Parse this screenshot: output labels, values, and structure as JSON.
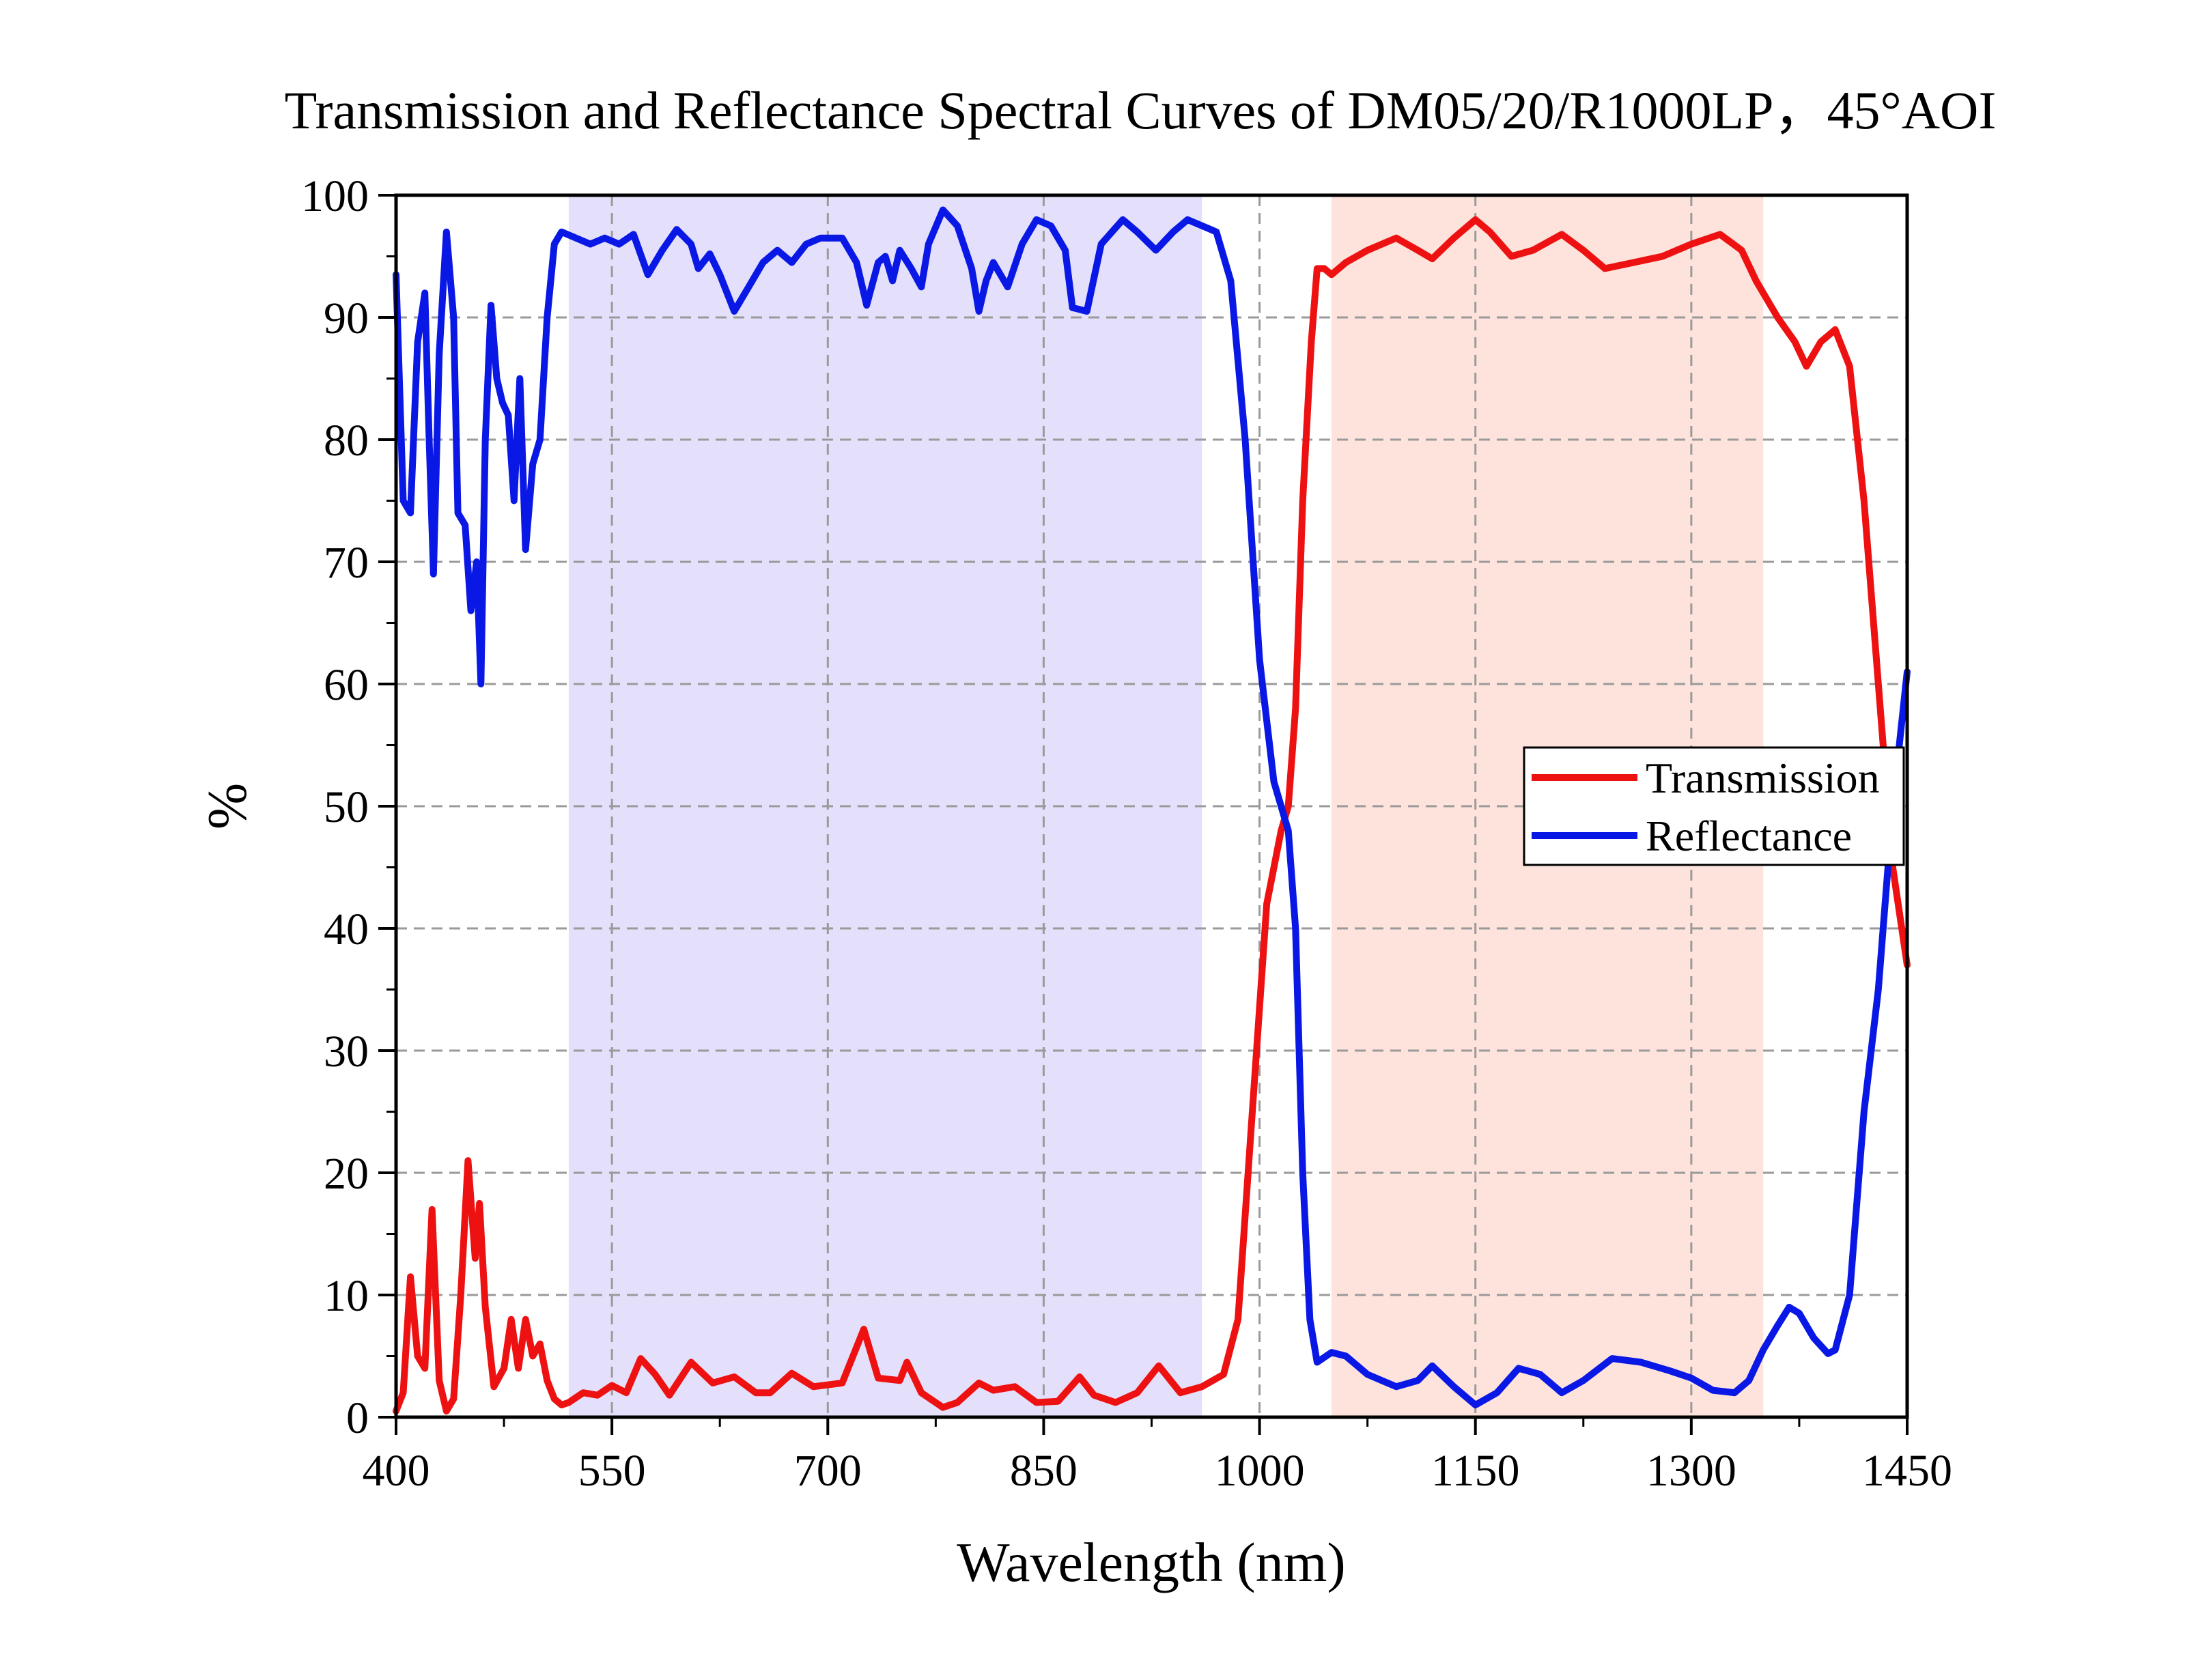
{
  "chart_data": {
    "type": "line",
    "title": "Transmission and Reflectance Spectral Curves of DM05/20/R1000LP，45°AOI",
    "xlabel": "Wavelength (nm)",
    "ylabel": "%",
    "xlim": [
      400,
      1450
    ],
    "ylim": [
      0,
      100
    ],
    "xticks": [
      "400",
      "550",
      "700",
      "850",
      "1000",
      "1150",
      "1300",
      "1450"
    ],
    "yticks": [
      "0",
      "10",
      "20",
      "30",
      "40",
      "50",
      "60",
      "70",
      "80",
      "90",
      "100"
    ],
    "grid": true,
    "legend_position": "right",
    "shaded_regions": [
      {
        "x_range": [
          520,
          960
        ],
        "color": "#e4e0fb"
      },
      {
        "x_range": [
          1050,
          1350
        ],
        "color": "#fde3dc"
      }
    ],
    "series": [
      {
        "name": "Transmission",
        "color": "#ee1111",
        "points": [
          [
            400,
            0.5
          ],
          [
            405,
            2
          ],
          [
            410,
            11.5
          ],
          [
            415,
            5
          ],
          [
            420,
            4
          ],
          [
            425,
            17
          ],
          [
            430,
            3
          ],
          [
            435,
            0.5
          ],
          [
            440,
            1.5
          ],
          [
            445,
            10
          ],
          [
            450,
            21
          ],
          [
            455,
            13
          ],
          [
            458,
            17.5
          ],
          [
            462,
            9
          ],
          [
            468,
            2.5
          ],
          [
            475,
            4
          ],
          [
            480,
            8
          ],
          [
            485,
            4
          ],
          [
            490,
            8
          ],
          [
            495,
            5
          ],
          [
            500,
            6
          ],
          [
            505,
            3
          ],
          [
            510,
            1.5
          ],
          [
            515,
            1
          ],
          [
            520,
            1.2
          ],
          [
            530,
            2
          ],
          [
            540,
            1.8
          ],
          [
            550,
            2.6
          ],
          [
            560,
            2
          ],
          [
            570,
            4.8
          ],
          [
            580,
            3.5
          ],
          [
            590,
            1.8
          ],
          [
            605,
            4.5
          ],
          [
            620,
            2.8
          ],
          [
            635,
            3.3
          ],
          [
            650,
            2
          ],
          [
            660,
            2
          ],
          [
            675,
            3.6
          ],
          [
            690,
            2.5
          ],
          [
            710,
            2.8
          ],
          [
            725,
            7.2
          ],
          [
            735,
            3.2
          ],
          [
            750,
            3
          ],
          [
            755,
            4.5
          ],
          [
            765,
            2
          ],
          [
            780,
            0.8
          ],
          [
            790,
            1.2
          ],
          [
            805,
            2.8
          ],
          [
            815,
            2.2
          ],
          [
            830,
            2.5
          ],
          [
            845,
            1.2
          ],
          [
            860,
            1.3
          ],
          [
            875,
            3.3
          ],
          [
            885,
            1.8
          ],
          [
            900,
            1.2
          ],
          [
            915,
            2
          ],
          [
            930,
            4.2
          ],
          [
            945,
            2
          ],
          [
            960,
            2.5
          ],
          [
            975,
            3.5
          ],
          [
            985,
            8
          ],
          [
            995,
            25
          ],
          [
            1005,
            42
          ],
          [
            1015,
            48
          ],
          [
            1020,
            50
          ],
          [
            1025,
            58
          ],
          [
            1030,
            75
          ],
          [
            1036,
            88
          ],
          [
            1040,
            94
          ],
          [
            1045,
            94
          ],
          [
            1050,
            93.5
          ],
          [
            1060,
            94.5
          ],
          [
            1075,
            95.5
          ],
          [
            1095,
            96.5
          ],
          [
            1110,
            95.5
          ],
          [
            1120,
            94.8
          ],
          [
            1135,
            96.5
          ],
          [
            1150,
            98
          ],
          [
            1160,
            97
          ],
          [
            1175,
            95
          ],
          [
            1190,
            95.5
          ],
          [
            1210,
            96.8
          ],
          [
            1225,
            95.5
          ],
          [
            1240,
            94
          ],
          [
            1260,
            94.5
          ],
          [
            1280,
            95
          ],
          [
            1300,
            96
          ],
          [
            1320,
            96.8
          ],
          [
            1335,
            95.5
          ],
          [
            1345,
            93
          ],
          [
            1360,
            90
          ],
          [
            1372,
            88
          ],
          [
            1380,
            86
          ],
          [
            1390,
            88
          ],
          [
            1400,
            89
          ],
          [
            1410,
            86
          ],
          [
            1420,
            75
          ],
          [
            1430,
            60
          ],
          [
            1440,
            45
          ],
          [
            1450,
            37
          ]
        ]
      },
      {
        "name": "Reflectance",
        "color": "#0a18e6",
        "points": [
          [
            400,
            93.5
          ],
          [
            405,
            75
          ],
          [
            410,
            74
          ],
          [
            415,
            88
          ],
          [
            420,
            92
          ],
          [
            423,
            80
          ],
          [
            426,
            69
          ],
          [
            430,
            87
          ],
          [
            435,
            97
          ],
          [
            440,
            90
          ],
          [
            443,
            74
          ],
          [
            448,
            73
          ],
          [
            452,
            66
          ],
          [
            456,
            70
          ],
          [
            459,
            60
          ],
          [
            462,
            80
          ],
          [
            466,
            91
          ],
          [
            470,
            85
          ],
          [
            474,
            83
          ],
          [
            478,
            82
          ],
          [
            482,
            75
          ],
          [
            486,
            85
          ],
          [
            490,
            71
          ],
          [
            495,
            78
          ],
          [
            500,
            80
          ],
          [
            505,
            90
          ],
          [
            510,
            96
          ],
          [
            515,
            97
          ],
          [
            525,
            96.5
          ],
          [
            535,
            96
          ],
          [
            545,
            96.5
          ],
          [
            555,
            96
          ],
          [
            565,
            96.8
          ],
          [
            575,
            93.5
          ],
          [
            585,
            95.5
          ],
          [
            595,
            97.2
          ],
          [
            605,
            96
          ],
          [
            610,
            94
          ],
          [
            618,
            95.2
          ],
          [
            625,
            93.5
          ],
          [
            635,
            90.5
          ],
          [
            645,
            92.5
          ],
          [
            655,
            94.5
          ],
          [
            665,
            95.5
          ],
          [
            675,
            94.5
          ],
          [
            685,
            96
          ],
          [
            695,
            96.5
          ],
          [
            710,
            96.5
          ],
          [
            720,
            94.5
          ],
          [
            727,
            91
          ],
          [
            735,
            94.5
          ],
          [
            740,
            95
          ],
          [
            745,
            93
          ],
          [
            750,
            95.5
          ],
          [
            758,
            94
          ],
          [
            765,
            92.5
          ],
          [
            770,
            96
          ],
          [
            780,
            98.8
          ],
          [
            790,
            97.5
          ],
          [
            800,
            94
          ],
          [
            805,
            90.5
          ],
          [
            810,
            93
          ],
          [
            815,
            94.5
          ],
          [
            825,
            92.5
          ],
          [
            835,
            96
          ],
          [
            845,
            98
          ],
          [
            855,
            97.5
          ],
          [
            865,
            95.5
          ],
          [
            870,
            90.8
          ],
          [
            880,
            90.5
          ],
          [
            890,
            96
          ],
          [
            905,
            98
          ],
          [
            915,
            97
          ],
          [
            928,
            95.5
          ],
          [
            940,
            97
          ],
          [
            950,
            98
          ],
          [
            970,
            97
          ],
          [
            980,
            93
          ],
          [
            990,
            80
          ],
          [
            1000,
            62
          ],
          [
            1010,
            52
          ],
          [
            1020,
            48
          ],
          [
            1025,
            40
          ],
          [
            1030,
            20
          ],
          [
            1035,
            8
          ],
          [
            1040,
            4.5
          ],
          [
            1050,
            5.3
          ],
          [
            1060,
            5
          ],
          [
            1075,
            3.5
          ],
          [
            1095,
            2.5
          ],
          [
            1110,
            3
          ],
          [
            1120,
            4.2
          ],
          [
            1135,
            2.5
          ],
          [
            1150,
            1
          ],
          [
            1165,
            2
          ],
          [
            1180,
            4
          ],
          [
            1195,
            3.5
          ],
          [
            1210,
            2
          ],
          [
            1225,
            3
          ],
          [
            1245,
            4.8
          ],
          [
            1265,
            4.5
          ],
          [
            1285,
            3.8
          ],
          [
            1300,
            3.2
          ],
          [
            1315,
            2.2
          ],
          [
            1330,
            2
          ],
          [
            1340,
            3
          ],
          [
            1350,
            5.5
          ],
          [
            1360,
            7.5
          ],
          [
            1368,
            9
          ],
          [
            1375,
            8.5
          ],
          [
            1385,
            6.5
          ],
          [
            1395,
            5.2
          ],
          [
            1400,
            5.5
          ],
          [
            1410,
            10
          ],
          [
            1420,
            25
          ],
          [
            1430,
            35
          ],
          [
            1440,
            50
          ],
          [
            1450,
            61
          ]
        ]
      }
    ]
  }
}
